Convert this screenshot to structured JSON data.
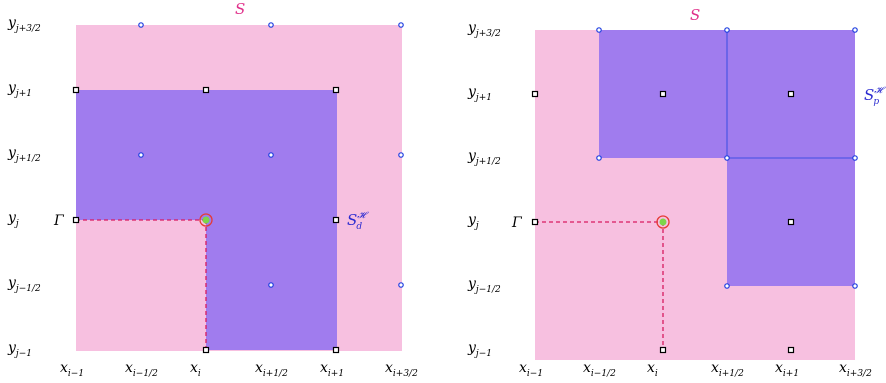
{
  "colors": {
    "pink": "#f7c0e0",
    "purple": "#a07cee",
    "dashed": "#d81b60",
    "pinkLabel": "#e0308a",
    "blueLabel": "#2a2ad0",
    "circle": "#e53935",
    "center": "#7cd64a",
    "node_blue": "#1f3fe0"
  },
  "diagrams": [
    {
      "id": "left",
      "region_label": "S",
      "sub_label": "S",
      "sub_label_sub": "d",
      "sub_label_sup": "𝓗",
      "gamma_label": "Γ",
      "y_labels": [
        {
          "main": "y",
          "sub": "j+3/2"
        },
        {
          "main": "y",
          "sub": "j+1"
        },
        {
          "main": "y",
          "sub": "j+1/2"
        },
        {
          "main": "y",
          "sub": "j"
        },
        {
          "main": "y",
          "sub": "j−1/2"
        },
        {
          "main": "y",
          "sub": "j−1"
        }
      ],
      "x_labels": [
        {
          "main": "x",
          "sub": "i−1"
        },
        {
          "main": "x",
          "sub": "i−1/2"
        },
        {
          "main": "x",
          "sub": "i"
        },
        {
          "main": "x",
          "sub": "i+1/2"
        },
        {
          "main": "x",
          "sub": "i+1"
        },
        {
          "main": "x",
          "sub": "i+3/2"
        }
      ]
    },
    {
      "id": "right",
      "region_label": "S",
      "sub_label": "S",
      "sub_label_sub": "p",
      "sub_label_sup": "𝓗",
      "gamma_label": "Γ",
      "y_labels": [
        {
          "main": "y",
          "sub": "j+3/2"
        },
        {
          "main": "y",
          "sub": "j+1"
        },
        {
          "main": "y",
          "sub": "j+1/2"
        },
        {
          "main": "y",
          "sub": "j"
        },
        {
          "main": "y",
          "sub": "j−1/2"
        },
        {
          "main": "y",
          "sub": "j−1"
        }
      ],
      "x_labels": [
        {
          "main": "x",
          "sub": "i−1"
        },
        {
          "main": "x",
          "sub": "i−1/2"
        },
        {
          "main": "x",
          "sub": "i"
        },
        {
          "main": "x",
          "sub": "i+1/2"
        },
        {
          "main": "x",
          "sub": "i+1"
        },
        {
          "main": "x",
          "sub": "i+3/2"
        }
      ]
    }
  ]
}
